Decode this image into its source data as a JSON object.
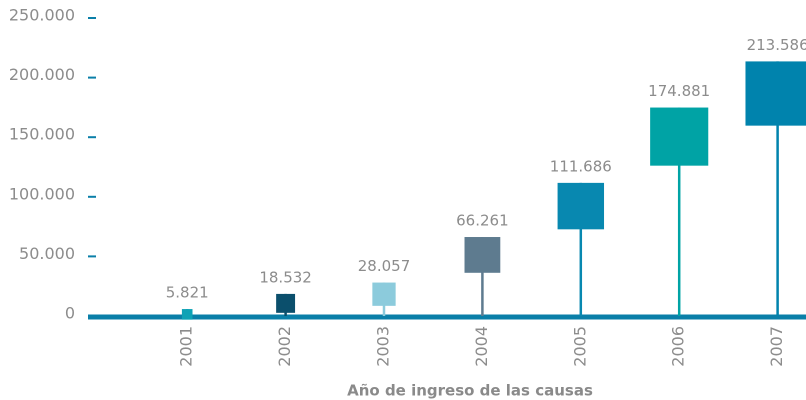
{
  "chart_data": {
    "type": "lollipop-square",
    "x_label": "Año de ingreso de las causas",
    "categories": [
      "2001",
      "2002",
      "2003",
      "2004",
      "2005",
      "2006",
      "2007"
    ],
    "values": [
      5821,
      18532,
      28057,
      66261,
      111686,
      174881,
      213586
    ],
    "value_labels": [
      "5.821",
      "18.532",
      "28.057",
      "66.261",
      "111.686",
      "174.881",
      "213.586"
    ],
    "colors": [
      "#0ea2b5",
      "#0b4f6c",
      "#8ccbdc",
      "#5e7b8f",
      "#0888b0",
      "#00a3a5",
      "#0083ad"
    ],
    "ylim": [
      0,
      250000
    ],
    "yticks": [
      0,
      {
        "value": 50000,
        "label": "50.000"
      },
      {
        "value": 100000,
        "label": "100.000"
      },
      {
        "value": 150000,
        "label": "150.000"
      },
      {
        "value": 200000,
        "label": "200.000"
      },
      {
        "value": 250000,
        "label": "250.000"
      }
    ]
  }
}
